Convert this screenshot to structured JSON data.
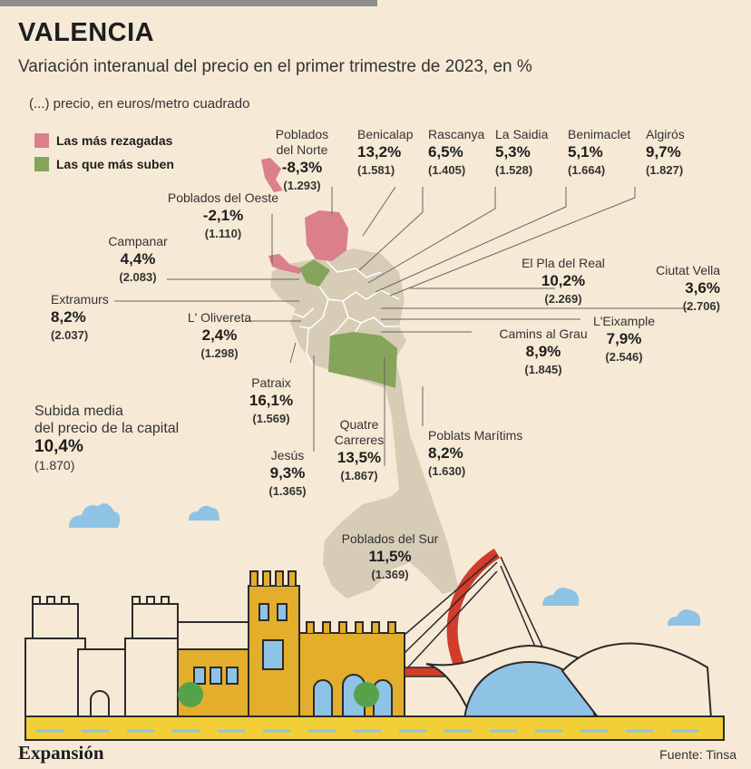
{
  "header": {
    "title": "VALENCIA",
    "subtitle": "Variación interanual del precio en el primer trimestre de 2023, en %",
    "note": "(...) precio, en euros/metro cuadrado"
  },
  "legend": {
    "laggard": {
      "label": "Las más rezagadas",
      "color": "#db7f8b"
    },
    "riser": {
      "label": "Las que más suben",
      "color": "#86a45a"
    }
  },
  "districts": [
    {
      "id": "poblados-norte",
      "name_line1": "Poblados",
      "name_line2": "del Norte",
      "pct": "-8,3%",
      "price": "(1.293)"
    },
    {
      "id": "benicalap",
      "name": "Benicalap",
      "pct": "13,2%",
      "price": "(1.581)"
    },
    {
      "id": "rascanya",
      "name": "Rascanya",
      "pct": "6,5%",
      "price": "(1.405)"
    },
    {
      "id": "la-saidia",
      "name": "La Saidia",
      "pct": "5,3%",
      "price": "(1.528)"
    },
    {
      "id": "benimaclet",
      "name": "Benimaclet",
      "pct": "5,1%",
      "price": "(1.664)"
    },
    {
      "id": "algiros",
      "name": "Algirós",
      "pct": "9,7%",
      "price": "(1.827)"
    },
    {
      "id": "poblados-oeste",
      "name": "Poblados del Oeste",
      "pct": "-2,1%",
      "price": "(1.110)"
    },
    {
      "id": "campanar",
      "name": "Campanar",
      "pct": "4,4%",
      "price": "(2.083)"
    },
    {
      "id": "extramurs",
      "name": "Extramurs",
      "pct": "8,2%",
      "price": "(2.037)"
    },
    {
      "id": "olivereta",
      "name": "L' Olivereta",
      "pct": "2,4%",
      "price": "(1.298)"
    },
    {
      "id": "pla-del-real",
      "name": "El Pla del Real",
      "pct": "10,2%",
      "price": "(2.269)"
    },
    {
      "id": "ciutat-vella",
      "name": "Ciutat  Vella",
      "pct": "3,6%",
      "price": "(2.706)"
    },
    {
      "id": "eixample",
      "name": "L'Eixample",
      "pct": "7,9%",
      "price": "(2.546)"
    },
    {
      "id": "camins-al-grau",
      "name": "Camins al Grau",
      "pct": "8,9%",
      "price": "(1.845)"
    },
    {
      "id": "patraix",
      "name": "Patraix",
      "pct": "16,1%",
      "price": "(1.569)"
    },
    {
      "id": "jesus",
      "name": "Jesús",
      "pct": "9,3%",
      "price": "(1.365)"
    },
    {
      "id": "quatre-carreres",
      "name_line1": "Quatre",
      "name_line2": "Carreres",
      "pct": "13,5%",
      "price": "(1.867)"
    },
    {
      "id": "poblats-maritims",
      "name": "Poblats Marítims",
      "pct": "8,2%",
      "price": "(1.630)"
    },
    {
      "id": "poblados-sur",
      "name": "Poblados del Sur",
      "pct": "11,5%",
      "price": "(1.369)"
    }
  ],
  "average": {
    "label_line1": "Subida media",
    "label_line2": "del precio de la capital",
    "pct": "10,4%",
    "price": "(1.870)"
  },
  "footer": {
    "brand": "Expansión",
    "source": "Fuente: Tinsa"
  },
  "colors": {
    "background": "#f6ead6",
    "map": "#d7ccb6",
    "laggard": "#db7f8b",
    "riser": "#86a45a",
    "tower": "#e3ae2c",
    "bridge": "#d23c2a",
    "sky_cloud": "#8fc3e6"
  }
}
